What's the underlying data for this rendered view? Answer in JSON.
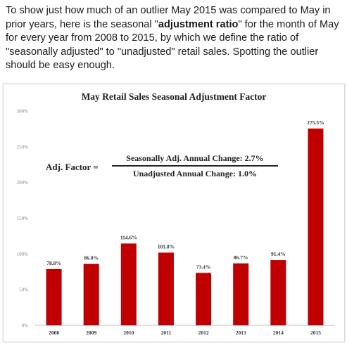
{
  "intro": {
    "part1": "To show just how much of an outlier May 2015 was compared to May in prior years, here is the seasonal \"",
    "bold": "adjustment ratio",
    "part2": "\" for the month of May for every year from 2008 to 2015, by which we define the ratio of \"seasonally adjusted\" to \"unadjusted\" retail sales. Spotting the outlier should be easy enough."
  },
  "formula": {
    "lhs": "Adj. Factor =",
    "numerator": "Seasonally Adj. Annual Change: 2.7%",
    "denominator": "Unadjusted Annual Change: 1.0%"
  },
  "chart_data": {
    "type": "bar",
    "title": "May Retail Sales Seasonal Adjustment Factor",
    "categories": [
      "2008",
      "2009",
      "2010",
      "2011",
      "2012",
      "2013",
      "2014",
      "2015"
    ],
    "values": [
      78.8,
      86.0,
      114.6,
      101.8,
      73.4,
      86.7,
      91.4,
      275.5
    ],
    "data_labels": [
      "78.8%",
      "86.0%",
      "114.6%",
      "101.8%",
      "73.4%",
      "86.7%",
      "91.4%",
      "275.5%"
    ],
    "ylim": [
      0,
      300
    ],
    "y_ticks": [
      0,
      50,
      100,
      150,
      200,
      250,
      300
    ],
    "y_tick_labels": [
      "0%",
      "50%",
      "100%",
      "150%",
      "200%",
      "250%",
      "300%"
    ],
    "xlabel": "",
    "ylabel": "",
    "grid": false,
    "bar_color": "#c00000"
  }
}
